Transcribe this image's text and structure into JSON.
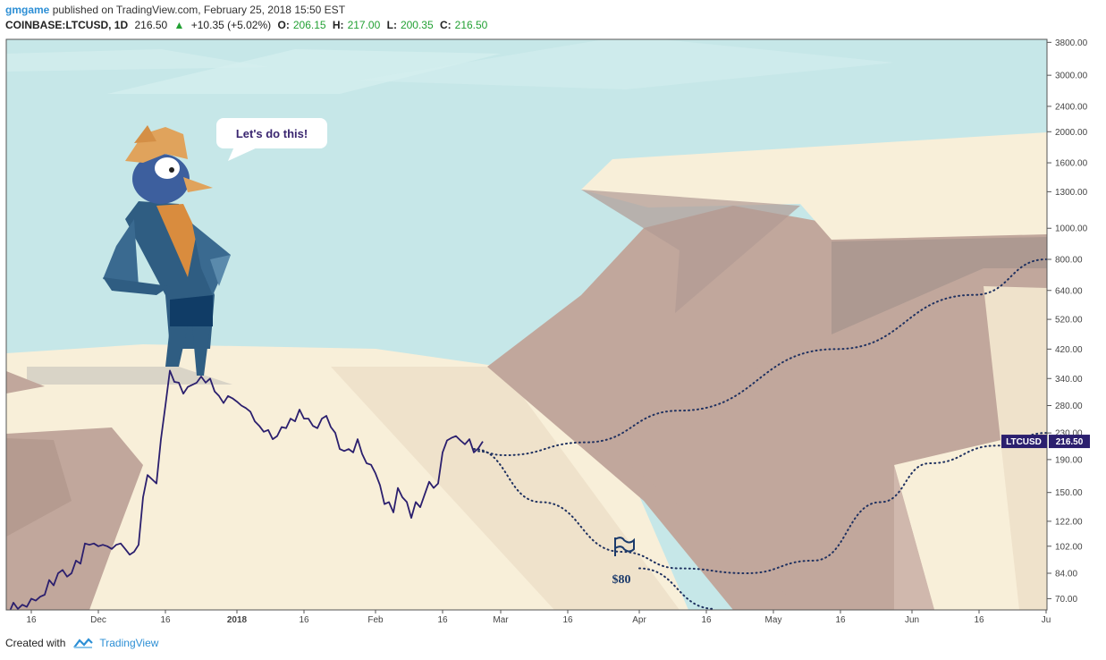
{
  "header": {
    "author": "gmgame",
    "published": "published on TradingView.com, February 25, 2018 15:50 EST"
  },
  "symbol_line": {
    "symbol": "COINBASE:LTCUSD, 1D",
    "last": "216.50",
    "change": "+10.35 (+5.02%)",
    "o_label": "O:",
    "o": "206.15",
    "h_label": "H:",
    "h": "217.00",
    "l_label": "L:",
    "l": "200.35",
    "c_label": "C:",
    "c": "216.50"
  },
  "callout": "Let's do this!",
  "flag_label": "$80",
  "price_tag": {
    "symbol": "LTCUSD",
    "price": "216.50"
  },
  "footer": {
    "created_with": "Created with",
    "brand": "TradingView"
  },
  "colors": {
    "sky": "#c6e7e8",
    "sand": "#f8efd9",
    "rock": "#c1a79c",
    "price_line": "#2b1f6e",
    "up": "#22a033",
    "tag_bg": "#2b1f6e"
  },
  "chart_data": {
    "type": "line",
    "scale": "log",
    "y_ticks": [
      3800,
      3000,
      2400,
      2000,
      1600,
      1300,
      1000,
      800,
      640,
      520,
      420,
      340,
      280,
      230,
      190,
      150,
      122,
      102,
      84,
      70
    ],
    "y_tick_labels": [
      "3800.00",
      "3000.00",
      "2400.00",
      "2000.00",
      "1600.00",
      "1300.00",
      "1000.00",
      "800.00",
      "640.00",
      "520.00",
      "420.00",
      "340.00",
      "280.00",
      "230.00",
      "190.00",
      "150.00",
      "122.00",
      "102.00",
      "84.00",
      "70.00"
    ],
    "x_tick_labels": [
      {
        "label": "16",
        "date": "2017-11-16"
      },
      {
        "label": "Dec",
        "date": "2017-12-01"
      },
      {
        "label": "16",
        "date": "2017-12-16"
      },
      {
        "label": "2018",
        "date": "2018-01-01"
      },
      {
        "label": "16",
        "date": "2018-01-16"
      },
      {
        "label": "Feb",
        "date": "2018-02-01"
      },
      {
        "label": "16",
        "date": "2018-02-16"
      },
      {
        "label": "Mar",
        "date": "2018-03-01"
      },
      {
        "label": "16",
        "date": "2018-03-16"
      },
      {
        "label": "Apr",
        "date": "2018-04-01"
      },
      {
        "label": "16",
        "date": "2018-04-16"
      },
      {
        "label": "May",
        "date": "2018-05-01"
      },
      {
        "label": "16",
        "date": "2018-05-16"
      },
      {
        "label": "Jun",
        "date": "2018-06-01"
      },
      {
        "label": "16",
        "date": "2018-06-16"
      },
      {
        "label": "Ju",
        "date": "2018-07-01"
      }
    ],
    "series": [
      {
        "values": [
          [
            "2017-11-11",
            63
          ],
          [
            "2017-11-12",
            68
          ],
          [
            "2017-11-13",
            65
          ],
          [
            "2017-11-14",
            67
          ],
          [
            "2017-11-15",
            66
          ],
          [
            "2017-11-16",
            70
          ],
          [
            "2017-11-17",
            69
          ],
          [
            "2017-11-18",
            71
          ],
          [
            "2017-11-19",
            72
          ],
          [
            "2017-11-20",
            80
          ],
          [
            "2017-11-21",
            77
          ],
          [
            "2017-11-22",
            84
          ],
          [
            "2017-11-23",
            86
          ],
          [
            "2017-11-24",
            82
          ],
          [
            "2017-11-25",
            84
          ],
          [
            "2017-11-26",
            92
          ],
          [
            "2017-11-27",
            90
          ],
          [
            "2017-11-28",
            104
          ],
          [
            "2017-11-29",
            103
          ],
          [
            "2017-11-30",
            104
          ],
          [
            "2017-12-01",
            102
          ],
          [
            "2017-12-02",
            103
          ],
          [
            "2017-12-03",
            102
          ],
          [
            "2017-12-04",
            100
          ],
          [
            "2017-12-05",
            103
          ],
          [
            "2017-12-06",
            104
          ],
          [
            "2017-12-07",
            100
          ],
          [
            "2017-12-08",
            96
          ],
          [
            "2017-12-09",
            98
          ],
          [
            "2017-12-10",
            103
          ],
          [
            "2017-12-11",
            145
          ],
          [
            "2017-12-12",
            170
          ],
          [
            "2017-12-13",
            165
          ],
          [
            "2017-12-14",
            160
          ],
          [
            "2017-12-15",
            220
          ],
          [
            "2017-12-16",
            280
          ],
          [
            "2017-12-17",
            360
          ],
          [
            "2017-12-18",
            332
          ],
          [
            "2017-12-19",
            330
          ],
          [
            "2017-12-20",
            305
          ],
          [
            "2017-12-21",
            320
          ],
          [
            "2017-12-22",
            325
          ],
          [
            "2017-12-23",
            330
          ],
          [
            "2017-12-24",
            345
          ],
          [
            "2017-12-25",
            330
          ],
          [
            "2017-12-26",
            340
          ],
          [
            "2017-12-27",
            310
          ],
          [
            "2017-12-28",
            300
          ],
          [
            "2017-12-29",
            285
          ],
          [
            "2017-12-30",
            300
          ],
          [
            "2017-12-31",
            295
          ],
          [
            "2018-01-01",
            288
          ],
          [
            "2018-01-02",
            280
          ],
          [
            "2018-01-03",
            275
          ],
          [
            "2018-01-04",
            268
          ],
          [
            "2018-01-05",
            250
          ],
          [
            "2018-01-06",
            242
          ],
          [
            "2018-01-07",
            232
          ],
          [
            "2018-01-08",
            235
          ],
          [
            "2018-01-09",
            220
          ],
          [
            "2018-01-10",
            225
          ],
          [
            "2018-01-11",
            240
          ],
          [
            "2018-01-12",
            238
          ],
          [
            "2018-01-13",
            255
          ],
          [
            "2018-01-14",
            250
          ],
          [
            "2018-01-15",
            272
          ],
          [
            "2018-01-16",
            255
          ],
          [
            "2018-01-17",
            255
          ],
          [
            "2018-01-18",
            242
          ],
          [
            "2018-01-19",
            238
          ],
          [
            "2018-01-20",
            255
          ],
          [
            "2018-01-21",
            260
          ],
          [
            "2018-01-22",
            240
          ],
          [
            "2018-01-23",
            230
          ],
          [
            "2018-01-24",
            205
          ],
          [
            "2018-01-25",
            202
          ],
          [
            "2018-01-26",
            205
          ],
          [
            "2018-01-27",
            200
          ],
          [
            "2018-01-28",
            220
          ],
          [
            "2018-01-29",
            198
          ],
          [
            "2018-01-30",
            185
          ],
          [
            "2018-01-31",
            183
          ],
          [
            "2018-02-01",
            172
          ],
          [
            "2018-02-02",
            158
          ],
          [
            "2018-02-03",
            138
          ],
          [
            "2018-02-04",
            140
          ],
          [
            "2018-02-05",
            130
          ],
          [
            "2018-02-06",
            155
          ],
          [
            "2018-02-07",
            145
          ],
          [
            "2018-02-08",
            140
          ],
          [
            "2018-02-09",
            125
          ],
          [
            "2018-02-10",
            140
          ],
          [
            "2018-02-11",
            135
          ],
          [
            "2018-02-12",
            148
          ],
          [
            "2018-02-13",
            162
          ],
          [
            "2018-02-14",
            155
          ],
          [
            "2018-02-15",
            160
          ],
          [
            "2018-02-16",
            200
          ],
          [
            "2018-02-17",
            218
          ],
          [
            "2018-02-18",
            222
          ],
          [
            "2018-02-19",
            225
          ],
          [
            "2018-02-20",
            218
          ],
          [
            "2018-02-21",
            212
          ],
          [
            "2018-02-22",
            220
          ],
          [
            "2018-02-23",
            200
          ],
          [
            "2018-02-24",
            206
          ],
          [
            "2018-02-25",
            216.5
          ]
        ]
      }
    ],
    "projections": [
      {
        "style": "dotted",
        "points": [
          [
            "2018-02-23",
            202
          ],
          [
            "2018-03-02",
            196
          ],
          [
            "2018-03-20",
            215
          ],
          [
            "2018-04-10",
            270
          ],
          [
            "2018-05-15",
            420
          ],
          [
            "2018-06-15",
            620
          ],
          [
            "2018-07-01",
            800
          ]
        ]
      },
      {
        "style": "dotted",
        "points": [
          [
            "2018-02-23",
            205
          ],
          [
            "2018-03-10",
            140
          ],
          [
            "2018-03-28",
            98
          ],
          [
            "2018-04-10",
            87
          ],
          [
            "2018-04-25",
            84
          ],
          [
            "2018-05-10",
            92
          ],
          [
            "2018-05-25",
            140
          ],
          [
            "2018-06-05",
            185
          ],
          [
            "2018-06-20",
            210
          ],
          [
            "2018-07-01",
            230
          ]
        ]
      },
      {
        "style": "dotted",
        "points": [
          [
            "2018-04-01",
            87
          ],
          [
            "2018-04-18",
            65
          ]
        ]
      }
    ],
    "flag_marker": {
      "date": "2018-03-28",
      "label": "$80"
    }
  }
}
